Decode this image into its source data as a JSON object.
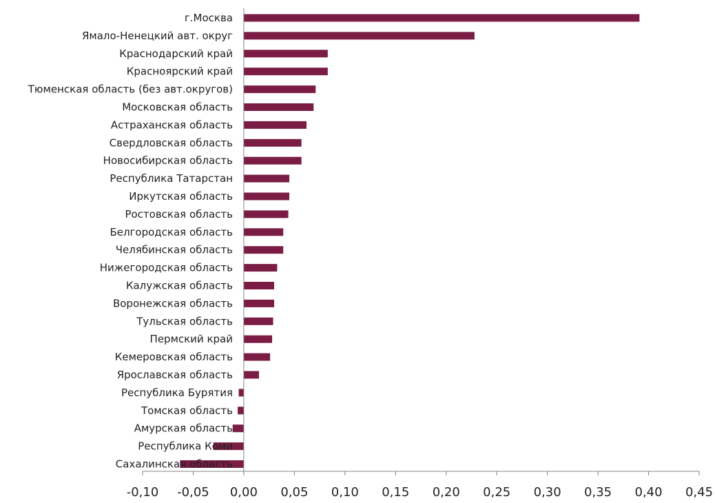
{
  "chart_data": {
    "type": "bar",
    "orientation": "horizontal",
    "categories": [
      "г.Москва",
      "Ямало-Ненецкий авт. округ",
      "Краснодарский край",
      "Красноярский край",
      "Тюменская область (без авт.округов)",
      "Московская область",
      "Астраханская область",
      "Свердловская область",
      "Новосибирская область",
      "Республика Татарстан",
      "Иркутская область",
      "Ростовская область",
      "Белгородская область",
      "Челябинская область",
      "Нижегородская область",
      "Калужская область",
      "Воронежская область",
      "Тульская область",
      "Пермский край",
      "Кемеровская область",
      "Ярославская область",
      "Республика Бурятия",
      "Томская область",
      "Амурская область",
      "Республика Коми",
      "Сахалинская область"
    ],
    "values": [
      0.391,
      0.228,
      0.083,
      0.083,
      0.071,
      0.069,
      0.062,
      0.057,
      0.057,
      0.045,
      0.045,
      0.044,
      0.039,
      0.039,
      0.033,
      0.03,
      0.03,
      0.029,
      0.028,
      0.026,
      0.015,
      -0.005,
      -0.006,
      -0.011,
      -0.03,
      -0.063
    ],
    "x_ticks": [
      "-0,10",
      "-0,05",
      "0,00",
      "0,05",
      "0,10",
      "0,15",
      "0,20",
      "0,25",
      "0,30",
      "0,35",
      "0,40",
      "0,45"
    ],
    "xlim": [
      -0.1,
      0.45
    ],
    "bar_color": "#7a1c44",
    "axis_color": "#808080",
    "grid": false,
    "legend": "none"
  }
}
